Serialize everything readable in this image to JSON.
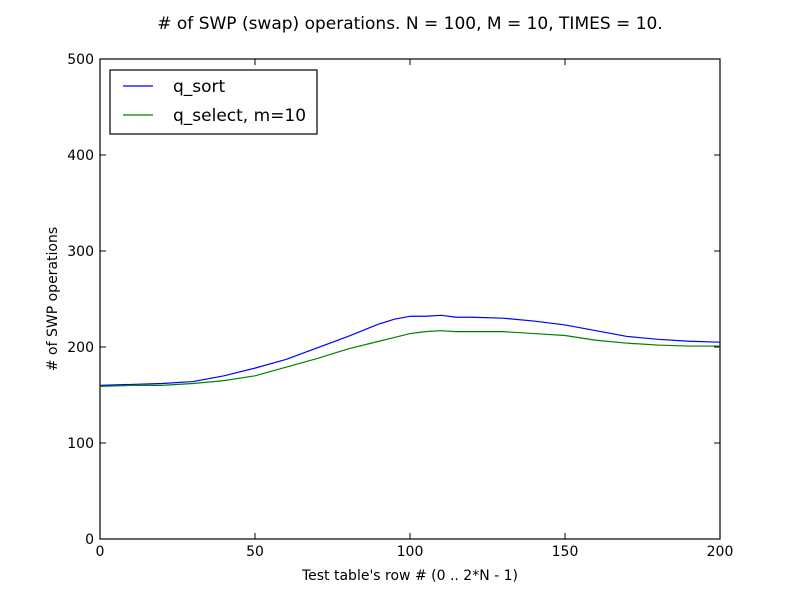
{
  "chart_data": {
    "type": "line",
    "title": "# of SWP (swap) operations. N = 100, M = 10, TIMES = 10.",
    "xlabel": "Test table's row # (0 .. 2*N - 1)",
    "ylabel": "# of SWP operations",
    "xlim": [
      0,
      200
    ],
    "ylim": [
      0,
      500
    ],
    "xticks": [
      0,
      50,
      100,
      150,
      200
    ],
    "yticks": [
      0,
      100,
      200,
      300,
      400,
      500
    ],
    "grid": false,
    "legend_position": "top-left",
    "series": [
      {
        "name": "q_sort",
        "color": "#0000ff",
        "x": [
          0,
          10,
          20,
          30,
          40,
          50,
          60,
          70,
          80,
          90,
          95,
          100,
          105,
          110,
          115,
          120,
          130,
          140,
          150,
          160,
          170,
          180,
          190,
          200
        ],
        "y": [
          160,
          161,
          162,
          164,
          170,
          178,
          187,
          199,
          211,
          224,
          229,
          232,
          232,
          233,
          231,
          231,
          230,
          227,
          223,
          217,
          211,
          208,
          206,
          205
        ]
      },
      {
        "name": "q_select, m=10",
        "color": "#008000",
        "x": [
          0,
          10,
          20,
          30,
          40,
          50,
          60,
          70,
          80,
          90,
          95,
          100,
          105,
          110,
          115,
          120,
          130,
          140,
          150,
          160,
          170,
          180,
          190,
          200
        ],
        "y": [
          159,
          160,
          160,
          162,
          165,
          170,
          179,
          188,
          198,
          206,
          210,
          214,
          216,
          217,
          216,
          216,
          216,
          214,
          212,
          207,
          204,
          202,
          201,
          201
        ]
      }
    ]
  }
}
